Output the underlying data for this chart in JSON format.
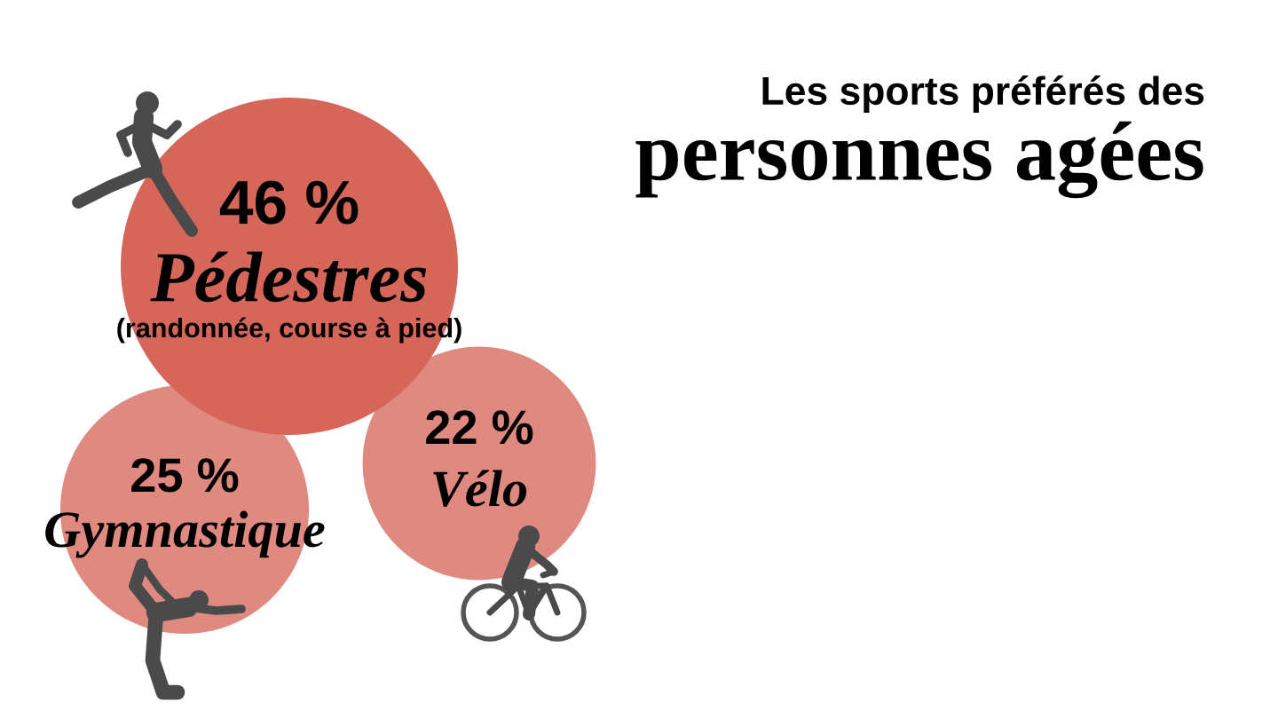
{
  "chart_data": {
    "type": "other",
    "title": "Les sports préférés des",
    "subtitle": "personnes agées",
    "categories": [
      "Pédestres",
      "Gymnastique",
      "Vélo"
    ],
    "values": [
      46,
      25,
      22
    ],
    "value_labels": [
      "46 %",
      "25 %",
      "22 %"
    ],
    "colors": [
      "#d6665a",
      "#e08980",
      "#e08980"
    ],
    "annotations": [
      "(randonnée, course à pied)"
    ]
  }
}
